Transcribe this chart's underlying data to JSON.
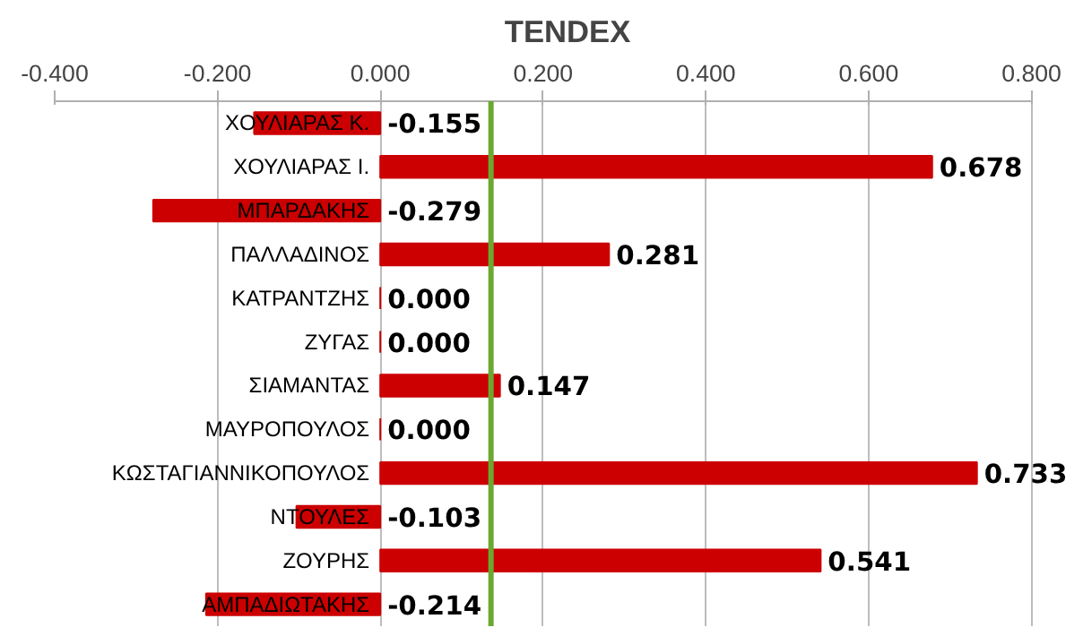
{
  "chart_data": {
    "type": "bar",
    "orientation": "horizontal",
    "title": "TENDEX",
    "categories": [
      "ΧΟΥΛΙΑΡΑΣ Κ.",
      "ΧΟΥΛΙΑΡΑΣ Ι.",
      "ΜΠΑΡΔΑΚΗΣ",
      "ΠΑΛΛΑΔΙΝΟΣ",
      "ΚΑΤΡΑΝΤΖΗΣ",
      "ΖΥΓΑΣ",
      "ΣΙΑΜΑΝΤΑΣ",
      "ΜΑΥΡΟΠΟΥΛΟΣ",
      "ΚΩΣΤΑΓΙΑΝΝΙΚΟΠΟΥΛΟΣ",
      "ΝΤΟΥΛΕΣ",
      "ΖΟΥΡΗΣ",
      "ΑΜΠΑΔΙΩΤΑΚΗΣ"
    ],
    "values": [
      -0.155,
      0.678,
      -0.279,
      0.281,
      0.0,
      0.0,
      0.147,
      0.0,
      0.733,
      -0.103,
      0.541,
      -0.214
    ],
    "color": "#cc0000",
    "value_labels": [
      "-0.155",
      "0.678",
      "-0.279",
      "0.281",
      "0.000",
      "0.000",
      "0.147",
      "0.000",
      "0.733",
      "-0.103",
      "0.541",
      "-0.214"
    ],
    "xlim": [
      -0.4,
      0.8
    ],
    "xticks": [
      {
        "value": -0.4,
        "label": "-0.400"
      },
      {
        "value": -0.2,
        "label": "-0.200"
      },
      {
        "value": 0,
        "label": "0.000"
      },
      {
        "value": 0.2,
        "label": "0.200"
      },
      {
        "value": 0.4,
        "label": "0.400"
      },
      {
        "value": 0.6,
        "label": "0.600"
      },
      {
        "value": 0.8,
        "label": "0.800"
      }
    ],
    "ref_lines": [
      {
        "axis": "x",
        "value": 0.136,
        "color": "#6aa832"
      }
    ],
    "grid": "x"
  }
}
